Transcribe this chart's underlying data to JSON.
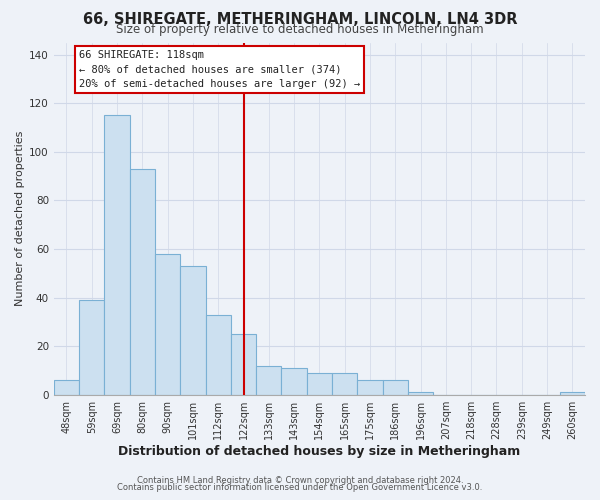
{
  "title": "66, SHIREGATE, METHERINGHAM, LINCOLN, LN4 3DR",
  "subtitle": "Size of property relative to detached houses in Metheringham",
  "xlabel": "Distribution of detached houses by size in Metheringham",
  "ylabel": "Number of detached properties",
  "bar_labels": [
    "48sqm",
    "59sqm",
    "69sqm",
    "80sqm",
    "90sqm",
    "101sqm",
    "112sqm",
    "122sqm",
    "133sqm",
    "143sqm",
    "154sqm",
    "165sqm",
    "175sqm",
    "186sqm",
    "196sqm",
    "207sqm",
    "218sqm",
    "228sqm",
    "239sqm",
    "249sqm",
    "260sqm"
  ],
  "bar_values": [
    6,
    39,
    115,
    93,
    58,
    53,
    33,
    25,
    12,
    11,
    9,
    9,
    6,
    6,
    1,
    0,
    0,
    0,
    0,
    0,
    1
  ],
  "bar_color": "#cce0f0",
  "bar_edge_color": "#7ab0d4",
  "vline_color": "#cc0000",
  "ylim": [
    0,
    145
  ],
  "yticks": [
    0,
    20,
    40,
    60,
    80,
    100,
    120,
    140
  ],
  "annotation_title": "66 SHIREGATE: 118sqm",
  "annotation_line1": "← 80% of detached houses are smaller (374)",
  "annotation_line2": "20% of semi-detached houses are larger (92) →",
  "annotation_box_color": "#ffffff",
  "annotation_box_edge": "#cc0000",
  "footer1": "Contains HM Land Registry data © Crown copyright and database right 2024.",
  "footer2": "Contains public sector information licensed under the Open Government Licence v3.0.",
  "background_color": "#eef2f8",
  "grid_color": "#d0d8e8",
  "title_fontsize": 10.5,
  "subtitle_fontsize": 8.5,
  "xlabel_fontsize": 9,
  "ylabel_fontsize": 8,
  "tick_fontsize": 7,
  "footer_fontsize": 6
}
